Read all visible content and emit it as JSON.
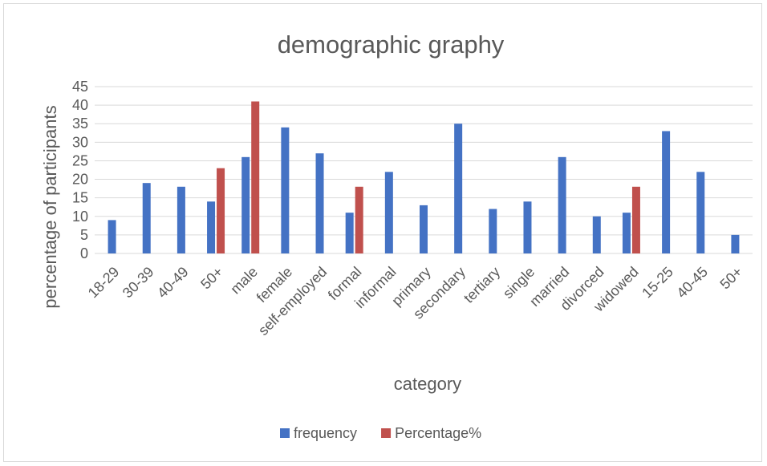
{
  "chart_data": {
    "type": "bar",
    "title": "demographic graphy",
    "xlabel": "category",
    "ylabel": "percentage of participants",
    "ylim": [
      0,
      45
    ],
    "ytick_step": 5,
    "grid": true,
    "legend_position": "bottom",
    "categories": [
      "18-29",
      "30-39",
      "40-49",
      "50+",
      "male",
      "female",
      "self-employed",
      "formal",
      "informal",
      "primary",
      "secondary",
      "tertiary",
      "single",
      "married",
      "divorced",
      "widowed",
      "15-25",
      "40-45",
      "50+"
    ],
    "series": [
      {
        "name": "frequency",
        "color": "#4472c4",
        "values": [
          9,
          19,
          18,
          14,
          26,
          34,
          27,
          11,
          22,
          13,
          35,
          12,
          14,
          26,
          10,
          11,
          33,
          22,
          5
        ]
      },
      {
        "name": "Percentage%",
        "color": "#c0504d",
        "values": [
          null,
          null,
          null,
          23,
          41,
          null,
          null,
          18,
          null,
          null,
          null,
          null,
          null,
          null,
          null,
          18,
          null,
          null,
          null
        ]
      }
    ]
  }
}
